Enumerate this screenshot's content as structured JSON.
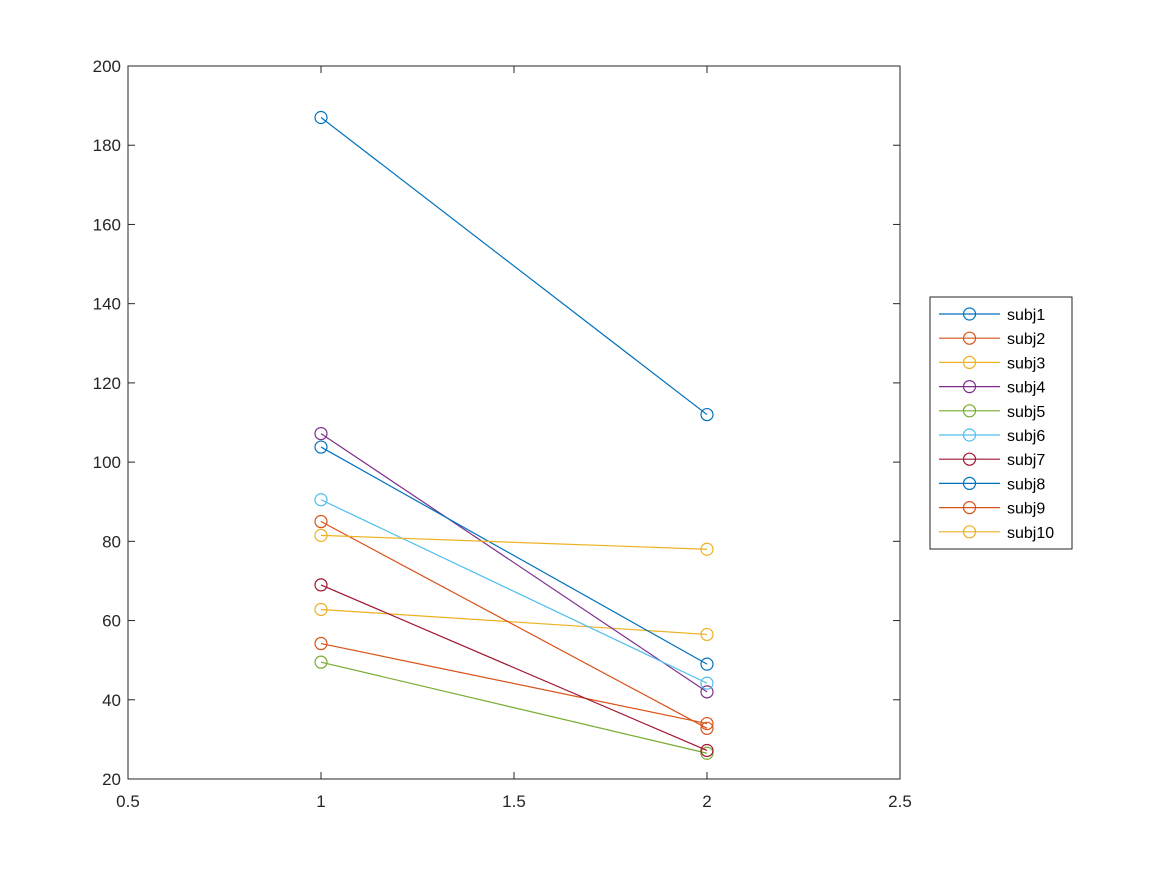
{
  "chart_data": {
    "type": "line",
    "title": "",
    "xlabel": "",
    "ylabel": "",
    "xlim": [
      0.5,
      2.5
    ],
    "ylim": [
      20,
      200
    ],
    "xticks": [
      "0.5",
      "1",
      "1.5",
      "2",
      "2.5"
    ],
    "yticks": [
      "20",
      "40",
      "60",
      "80",
      "100",
      "120",
      "140",
      "160",
      "180",
      "200"
    ],
    "grid": false,
    "legend_position": "outside-right",
    "marker": "circle-open",
    "x": [
      1,
      2
    ],
    "series": [
      {
        "name": "subj1",
        "color": "#0072BD",
        "values": [
          187,
          112
        ]
      },
      {
        "name": "subj2",
        "color": "#D95319",
        "values": [
          54.2,
          34
        ]
      },
      {
        "name": "subj3",
        "color": "#EDB120",
        "values": [
          62.8,
          56.5
        ]
      },
      {
        "name": "subj4",
        "color": "#7E2F8E",
        "values": [
          107.2,
          42
        ]
      },
      {
        "name": "subj5",
        "color": "#77AC30",
        "values": [
          49.5,
          26.5
        ]
      },
      {
        "name": "subj6",
        "color": "#4DBEEE",
        "values": [
          90.5,
          44.2
        ]
      },
      {
        "name": "subj7",
        "color": "#A2142F",
        "values": [
          69,
          27.2
        ]
      },
      {
        "name": "subj8",
        "color": "#0072BD",
        "values": [
          103.8,
          49
        ]
      },
      {
        "name": "subj9",
        "color": "#D95319",
        "values": [
          85,
          32.8
        ]
      },
      {
        "name": "subj10",
        "color": "#EDB120",
        "values": [
          81.5,
          78
        ]
      }
    ]
  }
}
